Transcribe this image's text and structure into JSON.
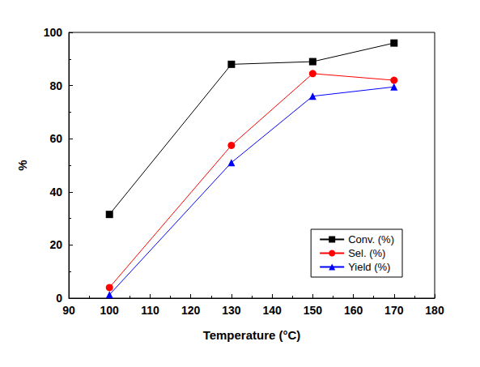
{
  "chart_data": {
    "type": "line",
    "x_label": "Temperature (°C)",
    "y_label": "%",
    "x": [
      100,
      130,
      150,
      170
    ],
    "series": [
      {
        "name": "Conv. (%)",
        "color": "#000000",
        "marker": "square",
        "values": [
          31.5,
          88,
          89,
          96
        ]
      },
      {
        "name": "Sel. (%)",
        "color": "#ff0000",
        "marker": "circle",
        "values": [
          4,
          57.5,
          84.5,
          82
        ]
      },
      {
        "name": "Yield (%)",
        "color": "#0000ff",
        "marker": "triangle",
        "values": [
          1.3,
          51,
          76,
          79.5
        ]
      }
    ],
    "xlim": [
      90,
      180
    ],
    "xticks": [
      90,
      100,
      110,
      120,
      130,
      140,
      150,
      160,
      170,
      180
    ],
    "ylim": [
      0,
      100
    ],
    "yticks": [
      0,
      20,
      40,
      60,
      80,
      100
    ],
    "grid": false,
    "legend": "lower right"
  }
}
